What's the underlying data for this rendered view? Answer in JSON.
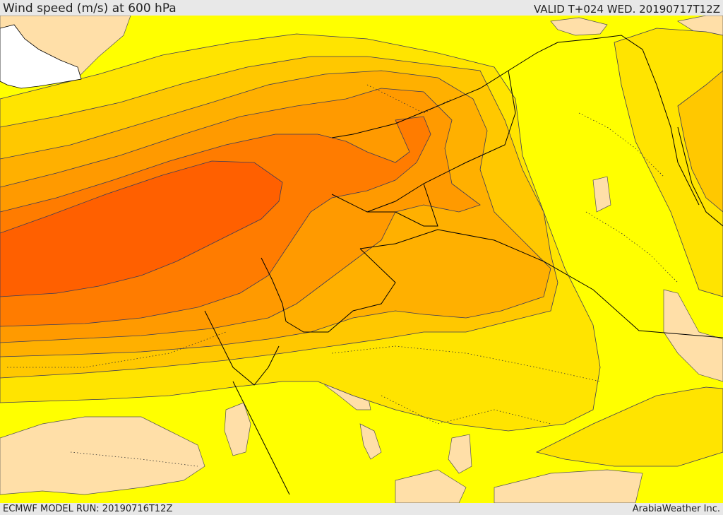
{
  "header": {
    "title": "Wind speed (m/s) at 600 hPa",
    "valid": "VALID T+024 WED. 20190717T12Z"
  },
  "footer": {
    "model_run": "ECMWF MODEL RUN: 20190716T12Z",
    "credit": "ArabiaWeather Inc."
  },
  "map": {
    "variable": "wind speed",
    "units": "m/s",
    "level": "600 hPa",
    "palette": [
      "#ffdfa8",
      "#ffff00",
      "#ffe400",
      "#ffc800",
      "#ffb000",
      "#ff9a00",
      "#ff7c00",
      "#ff6000"
    ],
    "water_color": "#ffffff",
    "border_color": "#000000",
    "contour_color": "#3a3a5a"
  }
}
